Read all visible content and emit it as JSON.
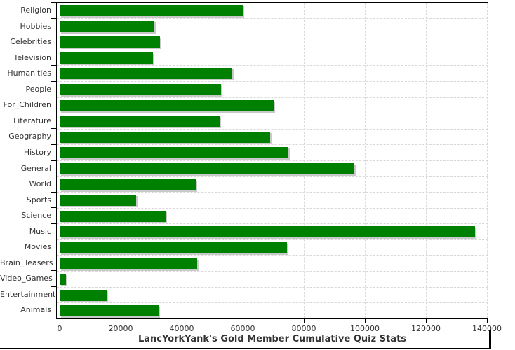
{
  "chart_data": {
    "type": "bar",
    "orientation": "horizontal",
    "title": "LancYorkYank's Gold Member Cumulative Quiz Stats",
    "categories": [
      "Religion",
      "Hobbies",
      "Celebrities",
      "Television",
      "Humanities",
      "People",
      "For_Children",
      "Literature",
      "Geography",
      "History",
      "General",
      "World",
      "Sports",
      "Science",
      "Music",
      "Movies",
      "Brain_Teasers",
      "Video_Games",
      "Entertainment",
      "Animals"
    ],
    "values": [
      60000,
      31000,
      32750,
      30500,
      56500,
      52750,
      70000,
      52500,
      69000,
      75000,
      96500,
      44500,
      25000,
      34750,
      136000,
      74500,
      45000,
      2000,
      15500,
      32500
    ],
    "xlabel": "",
    "ylabel": "",
    "xlim": [
      0,
      140000
    ],
    "x_tick_values": [
      0,
      20000,
      40000,
      60000,
      80000,
      100000,
      120000,
      140000
    ],
    "x_tick_labels": [
      "0",
      "20000",
      "40000",
      "60000",
      "80000",
      "100000",
      "120000",
      "140000"
    ],
    "grid": "dashed-both-axes",
    "legend": "none",
    "colors": {
      "bar_fill": "#008000",
      "bar_shadow": "#c9c9c9",
      "gridline": "#d8d8d8",
      "axis_line": "#000000",
      "label_text": "#333333"
    }
  }
}
